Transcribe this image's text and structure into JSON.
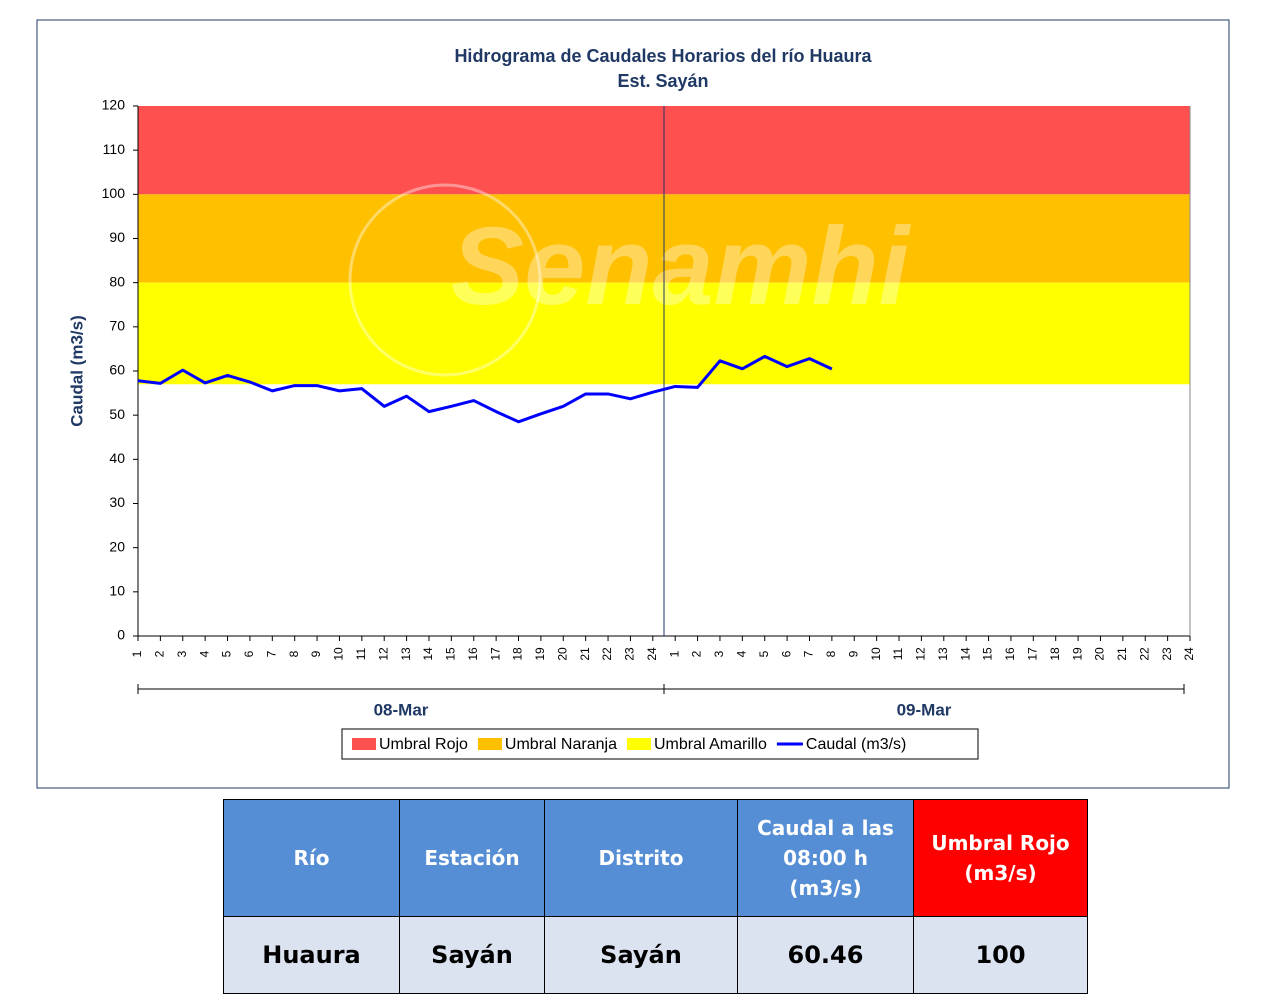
{
  "chart_data": {
    "type": "line",
    "title": "Hidrograma  de Caudales Horarios  del río Huaura",
    "subtitle": "Est. Sayán",
    "y_label": "Caudal (m3/s)",
    "watermark": "Senamhi",
    "ylim": [
      0,
      120
    ],
    "yticks": [
      0,
      10,
      20,
      30,
      40,
      50,
      60,
      70,
      80,
      90,
      100,
      110,
      120
    ],
    "groups": [
      "08-Mar",
      "09-Mar"
    ],
    "categories": [
      "1",
      "2",
      "3",
      "4",
      "5",
      "6",
      "7",
      "8",
      "9",
      "10",
      "11",
      "12",
      "13",
      "14",
      "15",
      "16",
      "17",
      "18",
      "19",
      "20",
      "21",
      "22",
      "23",
      "24",
      "1",
      "2",
      "3",
      "4",
      "5",
      "6",
      "7",
      "8",
      "9",
      "10",
      "11",
      "12",
      "13",
      "14",
      "15",
      "16",
      "17",
      "18",
      "19",
      "20",
      "21",
      "22",
      "23",
      "24"
    ],
    "thresholds": [
      {
        "name": "Umbral Rojo",
        "color": "#ff5050",
        "from": 100,
        "to": 120
      },
      {
        "name": "Umbral Naranja",
        "color": "#ffc000",
        "from": 80,
        "to": 100
      },
      {
        "name": "Umbral Amarillo",
        "color": "#ffff00",
        "from": 57,
        "to": 80
      }
    ],
    "series": [
      {
        "name": "Caudal (m3/s)",
        "color": "#0000ff",
        "values": [
          57.8,
          57.2,
          60.2,
          57.3,
          59.0,
          57.5,
          55.5,
          56.7,
          56.7,
          55.5,
          56.0,
          52.0,
          54.3,
          50.8,
          52.0,
          53.3,
          50.8,
          48.5,
          50.3,
          52.0,
          54.8,
          54.8,
          53.7,
          55.2,
          56.5,
          56.3,
          62.3,
          60.5,
          63.3,
          61.0,
          62.8,
          60.46,
          null,
          null,
          null,
          null,
          null,
          null,
          null,
          null,
          null,
          null,
          null,
          null,
          null,
          null,
          null,
          null
        ]
      }
    ]
  },
  "table": {
    "header": [
      "Río",
      "Estación",
      "Distrito",
      "Caudal a las 08:00 h (m3/s)",
      "Umbral Rojo (m3/s)"
    ],
    "rows": [
      [
        "Huaura",
        "Sayán",
        "Sayán",
        "60.46",
        "100"
      ]
    ]
  }
}
